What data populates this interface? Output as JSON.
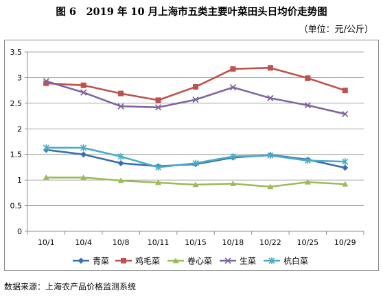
{
  "header": {
    "title": "图 6　2019 年 10 月上海市五类主要叶菜田头日均价走势图",
    "unit": "（单位：元/公斤）"
  },
  "footer": {
    "source": "数据来源：上海农产品价格监测系统"
  },
  "chart_data": {
    "type": "line",
    "title": "",
    "xlabel": "",
    "ylabel": "",
    "categories": [
      "10/1",
      "10/4",
      "10/8",
      "10/11",
      "10/15",
      "10/18",
      "10/22",
      "10/25",
      "10/29"
    ],
    "ylim": [
      0,
      3.5
    ],
    "yticks": [
      "0",
      "0.5",
      "1",
      "1.5",
      "2",
      "2.5",
      "3",
      "3.5"
    ],
    "grid": true,
    "legend": "bottom",
    "series": [
      {
        "name": "青菜",
        "color": "#3a6fb0",
        "marker": "diamond",
        "values": [
          1.59,
          1.5,
          1.33,
          1.27,
          1.31,
          1.44,
          1.49,
          1.4,
          1.24
        ]
      },
      {
        "name": "鸡毛菜",
        "color": "#c0504d",
        "marker": "square",
        "values": [
          2.89,
          2.85,
          2.69,
          2.56,
          2.82,
          3.17,
          3.19,
          2.99,
          2.75
        ]
      },
      {
        "name": "卷心菜",
        "color": "#9bbb59",
        "marker": "triangle",
        "values": [
          1.05,
          1.05,
          0.99,
          0.95,
          0.91,
          0.93,
          0.87,
          0.96,
          0.92
        ]
      },
      {
        "name": "生菜",
        "color": "#8064a2",
        "marker": "x",
        "values": [
          2.93,
          2.71,
          2.44,
          2.42,
          2.57,
          2.81,
          2.6,
          2.46,
          2.29
        ]
      },
      {
        "name": "杭白菜",
        "color": "#4bacc6",
        "marker": "star",
        "values": [
          1.63,
          1.63,
          1.46,
          1.25,
          1.33,
          1.46,
          1.48,
          1.38,
          1.36
        ]
      }
    ]
  }
}
